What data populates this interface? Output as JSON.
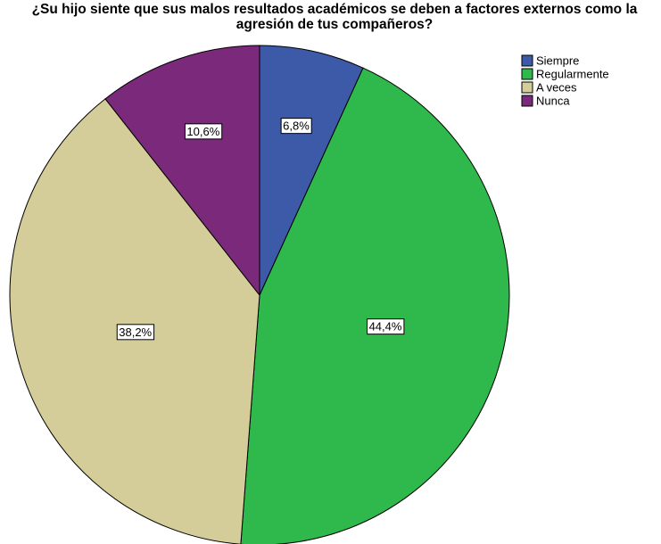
{
  "chart_data": {
    "type": "pie",
    "title": "¿Su hijo siente que sus malos resultados académicos se deben a factores externos como la agresión de tus compañeros?",
    "categories": [
      "Siempre",
      "Regularmente",
      "A veces",
      "Nunca"
    ],
    "values": [
      6.8,
      44.4,
      38.2,
      10.6
    ],
    "value_labels": [
      "6,8%",
      "44,4%",
      "38,2%",
      "10,6%"
    ],
    "colors": [
      "#3d5aa9",
      "#2fb84b",
      "#d5cd99",
      "#7b2a7b"
    ],
    "legend": "top-right"
  }
}
